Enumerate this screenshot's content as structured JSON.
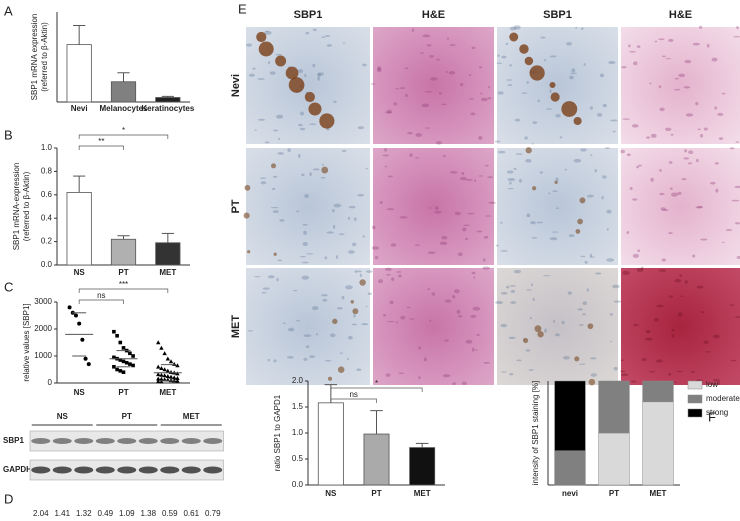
{
  "panels": [
    "A",
    "B",
    "C",
    "D",
    "E",
    "F"
  ],
  "histology": {
    "columns": [
      "SBP1",
      "H&E",
      "SBP1",
      "H&E"
    ],
    "rows": [
      "Nevi",
      "PT",
      "MET"
    ]
  },
  "blot": {
    "groups": [
      "NS",
      "PT",
      "MET"
    ],
    "rows": [
      "SBP1",
      "GAPDH"
    ],
    "ratios": [
      2.04,
      1.41,
      1.32,
      0.49,
      1.09,
      1.38,
      0.59,
      0.61,
      0.79
    ]
  },
  "chart_data": [
    {
      "type": "bar",
      "ylabel": [
        "SBP1 mRNA expression",
        "(referred to β-Aktin)"
      ],
      "categories": [
        "Nevi",
        "Melanocytes",
        "Keratinocytes"
      ],
      "values": [
        51,
        18,
        4
      ],
      "errors": [
        17,
        8,
        1
      ],
      "colors": [
        "#ffffff",
        "#808080",
        "#222222"
      ],
      "ylim": [
        0,
        80
      ]
    },
    {
      "type": "bar",
      "ylabel": [
        "SBP1 mRNA-expression",
        "(referred to β-Aktin)"
      ],
      "categories": [
        "NS",
        "PT",
        "MET"
      ],
      "values": [
        0.62,
        0.22,
        0.19
      ],
      "errors": [
        0.14,
        0.03,
        0.08
      ],
      "colors": [
        "#ffffff",
        "#b0b0b0",
        "#333333"
      ],
      "ylim": [
        0,
        1
      ],
      "yticks": [
        {
          "value": 0,
          "label": "0.0"
        },
        0.2,
        0.4,
        0.6,
        0.8,
        {
          "value": 1,
          "label": "1.0"
        }
      ],
      "annotations": [
        "**",
        "*"
      ]
    },
    {
      "type": "strip",
      "ylabel": [
        "relative values [SBP1]"
      ],
      "categories": [
        "NS",
        "PT",
        "MET"
      ],
      "points": [
        [
          2800,
          2600,
          2500,
          2200,
          1600,
          900,
          700
        ],
        [
          1900,
          1750,
          1500,
          1300,
          1200,
          1100,
          1000,
          950,
          900,
          850,
          800,
          750,
          700,
          650,
          600,
          500,
          450,
          400
        ],
        [
          1500,
          1300,
          1100,
          900,
          800,
          700,
          650,
          600,
          550,
          500,
          450,
          400,
          380,
          350,
          320,
          300,
          280,
          250,
          230,
          200,
          180,
          160,
          150,
          130,
          120,
          100,
          90,
          80,
          60,
          50
        ]
      ],
      "means": [
        1800,
        900,
        380
      ],
      "sd": [
        800,
        300,
        300
      ],
      "ylim": [
        0,
        3000
      ],
      "yticks": [
        0,
        1000,
        2000,
        3000
      ],
      "annotations": [
        "ns",
        "***"
      ]
    },
    {
      "type": "bar",
      "ylabel": [
        "ratio SBP1 to GAPD1"
      ],
      "categories": [
        "NS",
        "PT",
        "MET"
      ],
      "values": [
        1.58,
        0.98,
        0.72
      ],
      "errors": [
        0.35,
        0.45,
        0.08
      ],
      "colors": [
        "#ffffff",
        "#aaaaaa",
        "#111111"
      ],
      "ylim": [
        0,
        2
      ],
      "yticks": [
        {
          "value": 0,
          "label": "0.0"
        },
        0.5,
        {
          "value": 1,
          "label": "1.0"
        },
        1.5,
        {
          "value": 2,
          "label": "2.0"
        }
      ],
      "annotations": [
        "ns",
        "*"
      ]
    },
    {
      "type": "stacked_bar",
      "ylabel": [
        "intensity of SBP1 staining [%]"
      ],
      "categories": [
        "nevi",
        "PT",
        "MET"
      ],
      "series": [
        {
          "name": "low",
          "color": "#d9d9d9",
          "values": [
            0,
            50,
            80
          ]
        },
        {
          "name": "moderate",
          "color": "#808080",
          "values": [
            33,
            50,
            20
          ]
        },
        {
          "name": "strong",
          "color": "#000000",
          "values": [
            67,
            0,
            0
          ]
        }
      ],
      "ylim": [
        0,
        100
      ],
      "legend": "top-right"
    }
  ]
}
